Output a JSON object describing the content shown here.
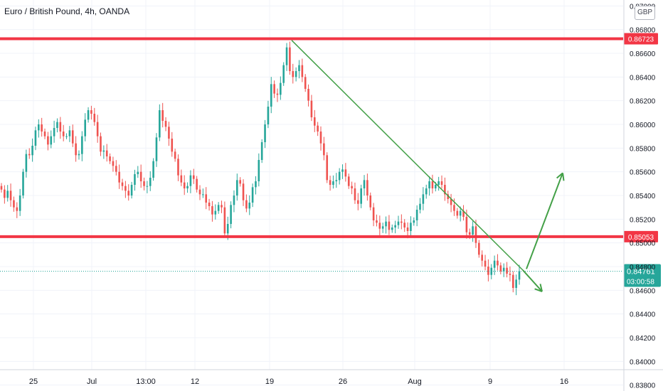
{
  "header": {
    "title": "Euro / British Pound, 4h, OANDA",
    "currency": "GBP"
  },
  "price_axis": {
    "ticks": [
      "0.87000",
      "0.86800",
      "0.86600",
      "0.86400",
      "0.86200",
      "0.86000",
      "0.85800",
      "0.85600",
      "0.85400",
      "0.85200",
      "0.85000",
      "0.84800",
      "0.84600",
      "0.84400",
      "0.84200",
      "0.84000",
      "0.83800"
    ]
  },
  "time_axis": {
    "labels": [
      "25",
      "Jul",
      "13:00",
      "12",
      "19",
      "26",
      "Aug",
      "9",
      "16"
    ]
  },
  "levels": [
    {
      "name": "resistance",
      "value": 0.86723,
      "label": "0.86723",
      "color": "#f23645"
    },
    {
      "name": "support",
      "value": 0.85053,
      "label": "0.85053",
      "color": "#f23645"
    }
  ],
  "current_price": {
    "value": 0.84761,
    "label": "0.84761",
    "countdown": "03:00:58",
    "color": "#26a69a"
  },
  "colors": {
    "up": "#26a69a",
    "down": "#ef5350",
    "trend": "#43a047",
    "grid": "#f0f3fa",
    "axis_text": "#131722"
  },
  "chart_data": {
    "type": "candlestick",
    "title": "Euro / British Pound, 4h, OANDA",
    "ylim": [
      0.8375,
      0.8705
    ],
    "grid": true,
    "date_axis": [
      "25",
      "Jul",
      "13:00",
      "12",
      "19",
      "26",
      "Aug",
      "9",
      "16"
    ],
    "horizontal_lines": [
      0.86723,
      0.85053
    ],
    "trendline": {
      "from": {
        "date": "Jul 21",
        "price": 0.8671
      },
      "to": {
        "date": "Aug 10",
        "price": 0.8477
      }
    },
    "projection_arrows": [
      {
        "from": {
          "date": "Aug 10",
          "price": 0.8477
        },
        "to": {
          "date": "Aug 12",
          "price": 0.8459
        }
      },
      {
        "from": {
          "date": "Aug 10",
          "price": 0.8477
        },
        "to": {
          "date": "Aug 14",
          "price": 0.8559
        }
      }
    ],
    "approx_close_path": [
      [
        0.8545,
        0.8538,
        0.8544,
        0.8536,
        0.853,
        0.8527,
        0.854,
        0.856,
        0.8575,
        0.8574,
        0.8582,
        0.8595,
        0.86,
        0.8594,
        0.859,
        0.8583,
        0.859,
        0.8597,
        0.8602,
        0.8594,
        0.859,
        0.859,
        0.8595,
        0.8584
      ],
      [
        0.8574,
        0.8575,
        0.859,
        0.8604,
        0.8612,
        0.8609,
        0.8602,
        0.859,
        0.8577,
        0.8578,
        0.8573,
        0.8569,
        0.8565,
        0.856,
        0.8551,
        0.8548,
        0.8544,
        0.854,
        0.8549,
        0.8558,
        0.856,
        0.8552,
        0.8548,
        0.8548
      ],
      [
        0.8555,
        0.8569,
        0.8589,
        0.8612,
        0.8603,
        0.8598,
        0.8588,
        0.8577,
        0.8571,
        0.8557,
        0.8551,
        0.8546,
        0.8548,
        0.8557,
        0.8554,
        0.8545,
        0.8541,
        0.8541,
        0.8534,
        0.8531,
        0.8524,
        0.8527,
        0.8532,
        0.853
      ],
      [
        0.8508,
        0.8516,
        0.8532,
        0.854,
        0.8553,
        0.855,
        0.8536,
        0.8529,
        0.8534,
        0.8547,
        0.8552,
        0.857,
        0.8585,
        0.86,
        0.8615,
        0.8634,
        0.8626,
        0.8625,
        0.8635,
        0.865,
        0.8665,
        0.8645,
        0.864,
        0.8645
      ],
      [
        0.865,
        0.864,
        0.863,
        0.862,
        0.8606,
        0.8599,
        0.8594,
        0.8584,
        0.8574,
        0.8553,
        0.8549,
        0.8552,
        0.8553,
        0.856,
        0.8562,
        0.8556,
        0.8548,
        0.8546,
        0.8536,
        0.8533,
        0.8546,
        0.8553,
        0.854,
        0.853
      ],
      [
        0.8519,
        0.8517,
        0.8512,
        0.8514,
        0.8518,
        0.8511,
        0.8513,
        0.8515,
        0.8518,
        0.8517,
        0.8513,
        0.851,
        0.8517,
        0.8519,
        0.8528,
        0.8533,
        0.8541,
        0.8546,
        0.8552,
        0.8546,
        0.8549,
        0.8552,
        0.8549,
        0.8541
      ],
      [
        0.8537,
        0.8532,
        0.8527,
        0.8523,
        0.8527,
        0.8522,
        0.8509,
        0.8507,
        0.8514,
        0.85,
        0.849,
        0.8485,
        0.848,
        0.8473,
        0.8479,
        0.8485,
        0.8481,
        0.8476,
        0.8479,
        0.8474,
        0.8473,
        0.8462,
        0.8469,
        0.8476
      ]
    ]
  }
}
